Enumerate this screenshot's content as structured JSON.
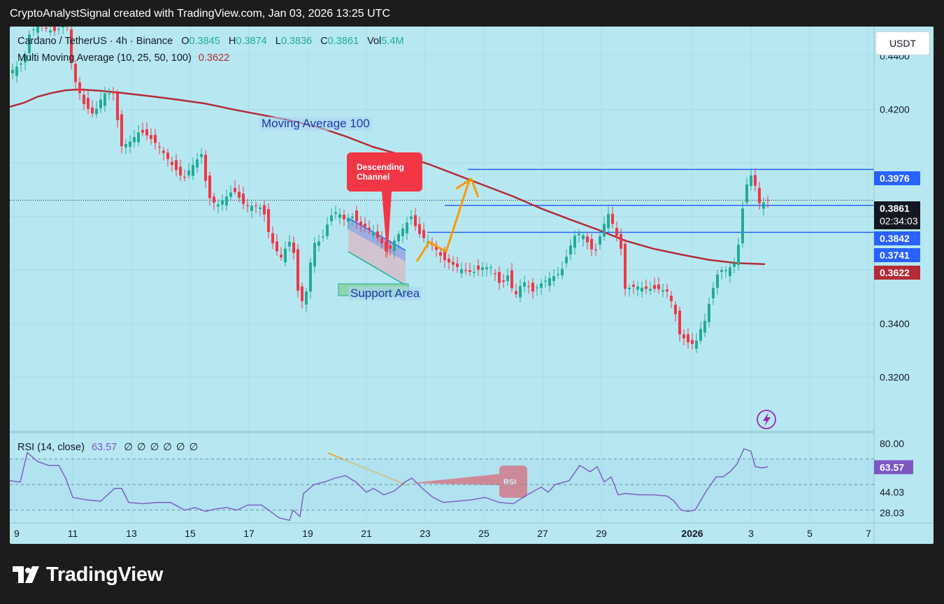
{
  "header": {
    "title": "CryptoAnalystSignal created with TradingView.com, Jan 03, 2026 13:25 UTC"
  },
  "legend": {
    "symbol": "Cardano / TetherUS · 4h · Binance",
    "o_label": "O",
    "o_value": "0.3845",
    "h_label": "H",
    "h_value": "0.3874",
    "l_label": "L",
    "l_value": "0.3836",
    "c_label": "C",
    "c_value": "0.3861",
    "vol_label": "Vol",
    "vol_value": "5.4M",
    "ma_label": "Multi Moving Average (10, 25, 50, 100)",
    "ma_value": "0.3622",
    "rsi_label": "RSI (14, close)",
    "rsi_value": "63.57",
    "rsi_extra": "∅ ∅ ∅ ∅ ∅ ∅"
  },
  "currency_button": "USDT",
  "annotations": {
    "ma_label": "Moving Average 100",
    "support_label": "Support Area",
    "channel_callout": "Descending\nChannel",
    "rsi_callout": "RSI"
  },
  "colors": {
    "up": "#22ab94",
    "down": "#f23645",
    "ma": "#b42b36",
    "level": "#2962ff",
    "rsi": "#7e57c2"
  },
  "brand": "TradingView",
  "chart_data": [
    {
      "type": "candlestick",
      "title": "Cardano / TetherUS · 4h · Binance",
      "y_ticks": [
        "0.4400",
        "0.4200",
        "0.3400",
        "0.3200"
      ],
      "ylim": [
        0.3,
        0.451
      ],
      "x_ticks": [
        "9",
        "11",
        "13",
        "15",
        "17",
        "19",
        "21",
        "23",
        "25",
        "27",
        "29",
        "2026",
        "3",
        "5",
        "7"
      ],
      "grid": true,
      "price_labels": [
        {
          "label": "0.3976",
          "value": 0.3976
        },
        {
          "label": "0.3861",
          "value": 0.3861,
          "countdown": "02:34:03"
        },
        {
          "label": "0.3842",
          "value": 0.3842
        },
        {
          "label": "0.3741",
          "value": 0.3741
        },
        {
          "label": "0.3622",
          "value": 0.3622
        }
      ],
      "horizontal_levels": [
        0.3976,
        0.3842,
        0.3741
      ],
      "ma100_series": [
        [
          0,
          0.421
        ],
        [
          20,
          0.4225
        ],
        [
          40,
          0.4248
        ],
        [
          60,
          0.4262
        ],
        [
          80,
          0.4272
        ],
        [
          100,
          0.4275
        ],
        [
          130,
          0.427
        ],
        [
          160,
          0.4262
        ],
        [
          200,
          0.425
        ],
        [
          240,
          0.4237
        ],
        [
          280,
          0.4222
        ],
        [
          320,
          0.42
        ],
        [
          360,
          0.418
        ],
        [
          400,
          0.416
        ],
        [
          440,
          0.4135
        ],
        [
          480,
          0.41
        ],
        [
          520,
          0.406
        ],
        [
          560,
          0.403
        ],
        [
          600,
          0.3995
        ],
        [
          640,
          0.3955
        ],
        [
          680,
          0.3915
        ],
        [
          720,
          0.3875
        ],
        [
          760,
          0.383
        ],
        [
          800,
          0.379
        ],
        [
          840,
          0.3752
        ],
        [
          880,
          0.371
        ],
        [
          920,
          0.368
        ],
        [
          960,
          0.3658
        ],
        [
          1000,
          0.3638
        ],
        [
          1040,
          0.3626
        ],
        [
          1080,
          0.3622
        ]
      ],
      "price_path": [
        [
          0,
          0.434
        ],
        [
          20,
          0.438
        ],
        [
          28,
          0.448
        ],
        [
          40,
          0.452
        ],
        [
          62,
          0.449
        ],
        [
          82,
          0.452
        ],
        [
          90,
          0.433
        ],
        [
          106,
          0.422
        ],
        [
          120,
          0.418
        ],
        [
          134,
          0.426
        ],
        [
          150,
          0.426
        ],
        [
          158,
          0.406
        ],
        [
          172,
          0.408
        ],
        [
          186,
          0.412
        ],
        [
          198,
          0.41
        ],
        [
          214,
          0.406
        ],
        [
          230,
          0.4
        ],
        [
          248,
          0.394
        ],
        [
          258,
          0.398
        ],
        [
          276,
          0.404
        ],
        [
          282,
          0.388
        ],
        [
          296,
          0.384
        ],
        [
          312,
          0.388
        ],
        [
          320,
          0.39
        ],
        [
          336,
          0.384
        ],
        [
          352,
          0.384
        ],
        [
          362,
          0.383
        ],
        [
          372,
          0.372
        ],
        [
          382,
          0.367
        ],
        [
          390,
          0.364
        ],
        [
          398,
          0.372
        ],
        [
          408,
          0.365
        ],
        [
          414,
          0.346
        ],
        [
          424,
          0.352
        ],
        [
          434,
          0.37
        ],
        [
          446,
          0.371
        ],
        [
          458,
          0.38
        ],
        [
          468,
          0.382
        ],
        [
          478,
          0.379
        ],
        [
          490,
          0.38
        ],
        [
          500,
          0.377
        ],
        [
          510,
          0.376
        ],
        [
          520,
          0.374
        ],
        [
          532,
          0.37
        ],
        [
          540,
          0.366
        ],
        [
          552,
          0.372
        ],
        [
          566,
          0.377
        ],
        [
          574,
          0.38
        ],
        [
          584,
          0.374
        ],
        [
          596,
          0.371
        ],
        [
          606,
          0.369
        ],
        [
          620,
          0.364
        ],
        [
          634,
          0.362
        ],
        [
          648,
          0.36
        ],
        [
          662,
          0.359
        ],
        [
          676,
          0.361
        ],
        [
          690,
          0.361
        ],
        [
          702,
          0.354
        ],
        [
          712,
          0.358
        ],
        [
          722,
          0.35
        ],
        [
          734,
          0.356
        ],
        [
          748,
          0.352
        ],
        [
          760,
          0.355
        ],
        [
          772,
          0.357
        ],
        [
          788,
          0.359
        ],
        [
          800,
          0.368
        ],
        [
          810,
          0.374
        ],
        [
          820,
          0.373
        ],
        [
          836,
          0.366
        ],
        [
          848,
          0.376
        ],
        [
          856,
          0.381
        ],
        [
          864,
          0.376
        ],
        [
          874,
          0.368
        ],
        [
          880,
          0.353
        ],
        [
          896,
          0.354
        ],
        [
          910,
          0.353
        ],
        [
          926,
          0.353
        ],
        [
          940,
          0.352
        ],
        [
          950,
          0.346
        ],
        [
          958,
          0.336
        ],
        [
          970,
          0.333
        ],
        [
          980,
          0.332
        ],
        [
          986,
          0.337
        ],
        [
          996,
          0.342
        ],
        [
          1002,
          0.35
        ],
        [
          1014,
          0.36
        ],
        [
          1026,
          0.36
        ],
        [
          1038,
          0.363
        ],
        [
          1046,
          0.376
        ],
        [
          1050,
          0.39
        ],
        [
          1058,
          0.394
        ],
        [
          1064,
          0.398
        ],
        [
          1068,
          0.385
        ],
        [
          1076,
          0.385
        ],
        [
          1084,
          0.386
        ]
      ]
    },
    {
      "type": "line",
      "title": "RSI (14, close)",
      "y_ticks": [
        "80.00",
        "44.03",
        "28.03"
      ],
      "last_value": 63.57,
      "ylim": [
        20,
        90
      ],
      "dashed_levels": [
        70,
        50,
        30
      ],
      "series": [
        [
          0,
          53
        ],
        [
          15,
          52
        ],
        [
          25,
          75
        ],
        [
          40,
          68
        ],
        [
          55,
          65
        ],
        [
          70,
          65
        ],
        [
          80,
          55
        ],
        [
          90,
          40
        ],
        [
          110,
          38
        ],
        [
          130,
          37
        ],
        [
          150,
          47
        ],
        [
          160,
          47
        ],
        [
          170,
          36
        ],
        [
          190,
          35
        ],
        [
          210,
          36
        ],
        [
          230,
          36
        ],
        [
          250,
          30
        ],
        [
          265,
          32
        ],
        [
          280,
          29
        ],
        [
          295,
          31
        ],
        [
          310,
          32
        ],
        [
          325,
          30
        ],
        [
          340,
          34
        ],
        [
          360,
          34
        ],
        [
          370,
          30
        ],
        [
          385,
          24
        ],
        [
          400,
          22
        ],
        [
          405,
          30
        ],
        [
          415,
          25
        ],
        [
          420,
          43
        ],
        [
          435,
          50
        ],
        [
          450,
          52
        ],
        [
          465,
          55
        ],
        [
          480,
          57
        ],
        [
          495,
          52
        ],
        [
          510,
          44
        ],
        [
          520,
          47
        ],
        [
          535,
          42
        ],
        [
          550,
          45
        ],
        [
          565,
          52
        ],
        [
          575,
          55
        ],
        [
          590,
          47
        ],
        [
          605,
          40
        ],
        [
          620,
          36
        ],
        [
          640,
          37
        ],
        [
          660,
          38
        ],
        [
          680,
          40
        ],
        [
          700,
          36
        ],
        [
          720,
          35
        ],
        [
          740,
          42
        ],
        [
          760,
          48
        ],
        [
          770,
          44
        ],
        [
          780,
          50
        ],
        [
          800,
          53
        ],
        [
          815,
          65
        ],
        [
          830,
          60
        ],
        [
          840,
          64
        ],
        [
          850,
          52
        ],
        [
          860,
          56
        ],
        [
          870,
          42
        ],
        [
          880,
          43
        ],
        [
          900,
          42
        ],
        [
          920,
          42
        ],
        [
          940,
          41
        ],
        [
          950,
          37
        ],
        [
          960,
          30
        ],
        [
          970,
          29
        ],
        [
          980,
          30
        ],
        [
          995,
          44
        ],
        [
          1010,
          56
        ],
        [
          1020,
          56
        ],
        [
          1030,
          60
        ],
        [
          1040,
          66
        ],
        [
          1050,
          78
        ],
        [
          1060,
          76
        ],
        [
          1066,
          64
        ],
        [
          1076,
          63
        ],
        [
          1084,
          64
        ]
      ]
    }
  ]
}
